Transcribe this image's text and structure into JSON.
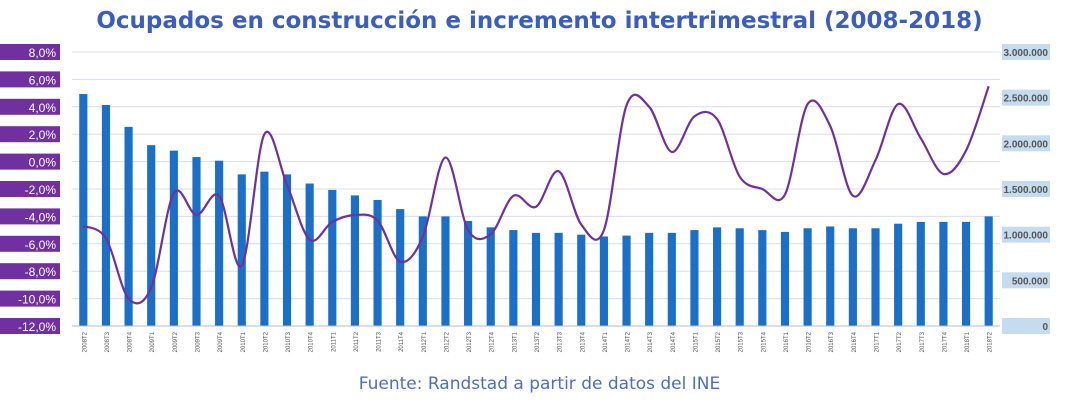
{
  "title": "Ocupados en construcción e incremento intertrimestral (2008-2018)",
  "source": "Fuente: Randstad a partir de datos del INE",
  "chart_data": {
    "type": "bar+line",
    "categories": [
      "2008T2",
      "2008T3",
      "2008T4",
      "2009T1",
      "2009T2",
      "2009T3",
      "2009T4",
      "2010T1",
      "2010T2",
      "2010T3",
      "2010T4",
      "2011T1",
      "2011T2",
      "2011T3",
      "2011T4",
      "2012T1",
      "2012T2",
      "2012T3",
      "2012T4",
      "2013T1",
      "2013T2",
      "2013T3",
      "2013T4",
      "2014T1",
      "2014T2",
      "2014T3",
      "2014T4",
      "2015T1",
      "2015T2",
      "2015T3",
      "2015T4",
      "2016T1",
      "2016T2",
      "2016T3",
      "2016T4",
      "2017T1",
      "2017T2",
      "2017T3",
      "2017T4",
      "2018T1",
      "2018T2"
    ],
    "bars": {
      "axis": "right",
      "values": [
        2540000,
        2420000,
        2180000,
        1980000,
        1920000,
        1850000,
        1810000,
        1660000,
        1690000,
        1660000,
        1560000,
        1490000,
        1430000,
        1380000,
        1280000,
        1200000,
        1200000,
        1150000,
        1080000,
        1050000,
        1020000,
        1020000,
        1000000,
        980000,
        990000,
        1020000,
        1020000,
        1050000,
        1080000,
        1070000,
        1050000,
        1030000,
        1070000,
        1090000,
        1070000,
        1070000,
        1120000,
        1140000,
        1140000,
        1140000,
        1200000
      ],
      "color": "#1a6fc8"
    },
    "line": {
      "axis": "left",
      "values": [
        -4.7,
        -5.6,
        -10.0,
        -9.2,
        -2.3,
        -3.9,
        -2.5,
        -7.6,
        2.0,
        -1.7,
        -5.7,
        -4.4,
        -3.9,
        -4.3,
        -7.3,
        -5.5,
        0.3,
        -5.0,
        -5.3,
        -2.5,
        -3.3,
        -0.7,
        -4.6,
        -5.0,
        4.1,
        4.0,
        0.7,
        3.3,
        3.1,
        -1.1,
        -2.0,
        -2.4,
        4.2,
        2.6,
        -2.5,
        0.1,
        4.2,
        1.7,
        -0.9,
        0.8,
        5.5
      ],
      "color": "#7030a0"
    },
    "y_left": {
      "min": -12,
      "max": 8,
      "step": 2,
      "ticks": [
        "8,0%",
        "6,0%",
        "4,0%",
        "2,0%",
        "0,0%",
        "-2,0%",
        "-4,0%",
        "-6,0%",
        "-8,0%",
        "-10,0%",
        "-12,0%"
      ]
    },
    "y_right": {
      "min": 0,
      "max": 3000000,
      "step": 500000,
      "ticks": [
        "3.000.000",
        "2.500.000",
        "2.000.000",
        "1.500.000",
        "1.000.000",
        "500.000",
        "0"
      ]
    },
    "grid": true,
    "legend": "none"
  }
}
